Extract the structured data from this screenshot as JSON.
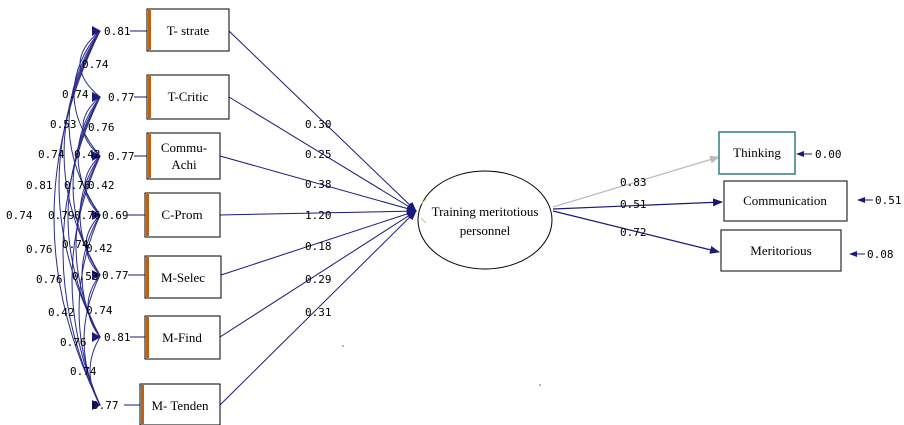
{
  "diagram": {
    "observed_left": [
      {
        "label": "T- strate",
        "variance": "0.81",
        "path_coef": "0.30"
      },
      {
        "label": "T-Critic",
        "variance": "0.77",
        "path_coef": "0.25"
      },
      {
        "label_lines": [
          "Commu-",
          "Achi"
        ],
        "variance": "0.77",
        "path_coef": "0.38"
      },
      {
        "label": "C-Prom",
        "variance": "0.69",
        "path_coef": "1.20"
      },
      {
        "label": "M-Selec",
        "variance": "0.77",
        "path_coef": "0.18"
      },
      {
        "label": "M-Find",
        "variance": "0.81",
        "path_coef": "0.29"
      },
      {
        "label": "M- Tenden",
        "variance": "0.77",
        "path_coef": "0.31"
      }
    ],
    "latent": {
      "label_lines": [
        "Training meritotious",
        "personnel"
      ]
    },
    "outcomes": [
      {
        "label": "Thinking",
        "loading": "0.83",
        "error": "0.00"
      },
      {
        "label": "Communication",
        "loading": "0.51",
        "error": "0.51"
      },
      {
        "label": "Meritorious",
        "loading": "0.72",
        "error": "0.08"
      }
    ],
    "covariance_labels": [
      "0.74",
      "0.74",
      "0.53",
      "0.76",
      "0.74",
      "0.42",
      "0.81",
      "0.76",
      "0.42",
      "0.74",
      "0.79",
      "0.76",
      "0.76",
      "0.74",
      "0.42",
      "0.76",
      "0.53",
      "0.42",
      "0.74",
      "0.76",
      "0.74"
    ],
    "colors": {
      "path": "#1a1a7a",
      "cov_arc": "#2a2a8a",
      "thinking_arrow": "#bbbbbb",
      "left_box_border": "#c06010",
      "thinking_border": "#2f7f7f"
    }
  }
}
